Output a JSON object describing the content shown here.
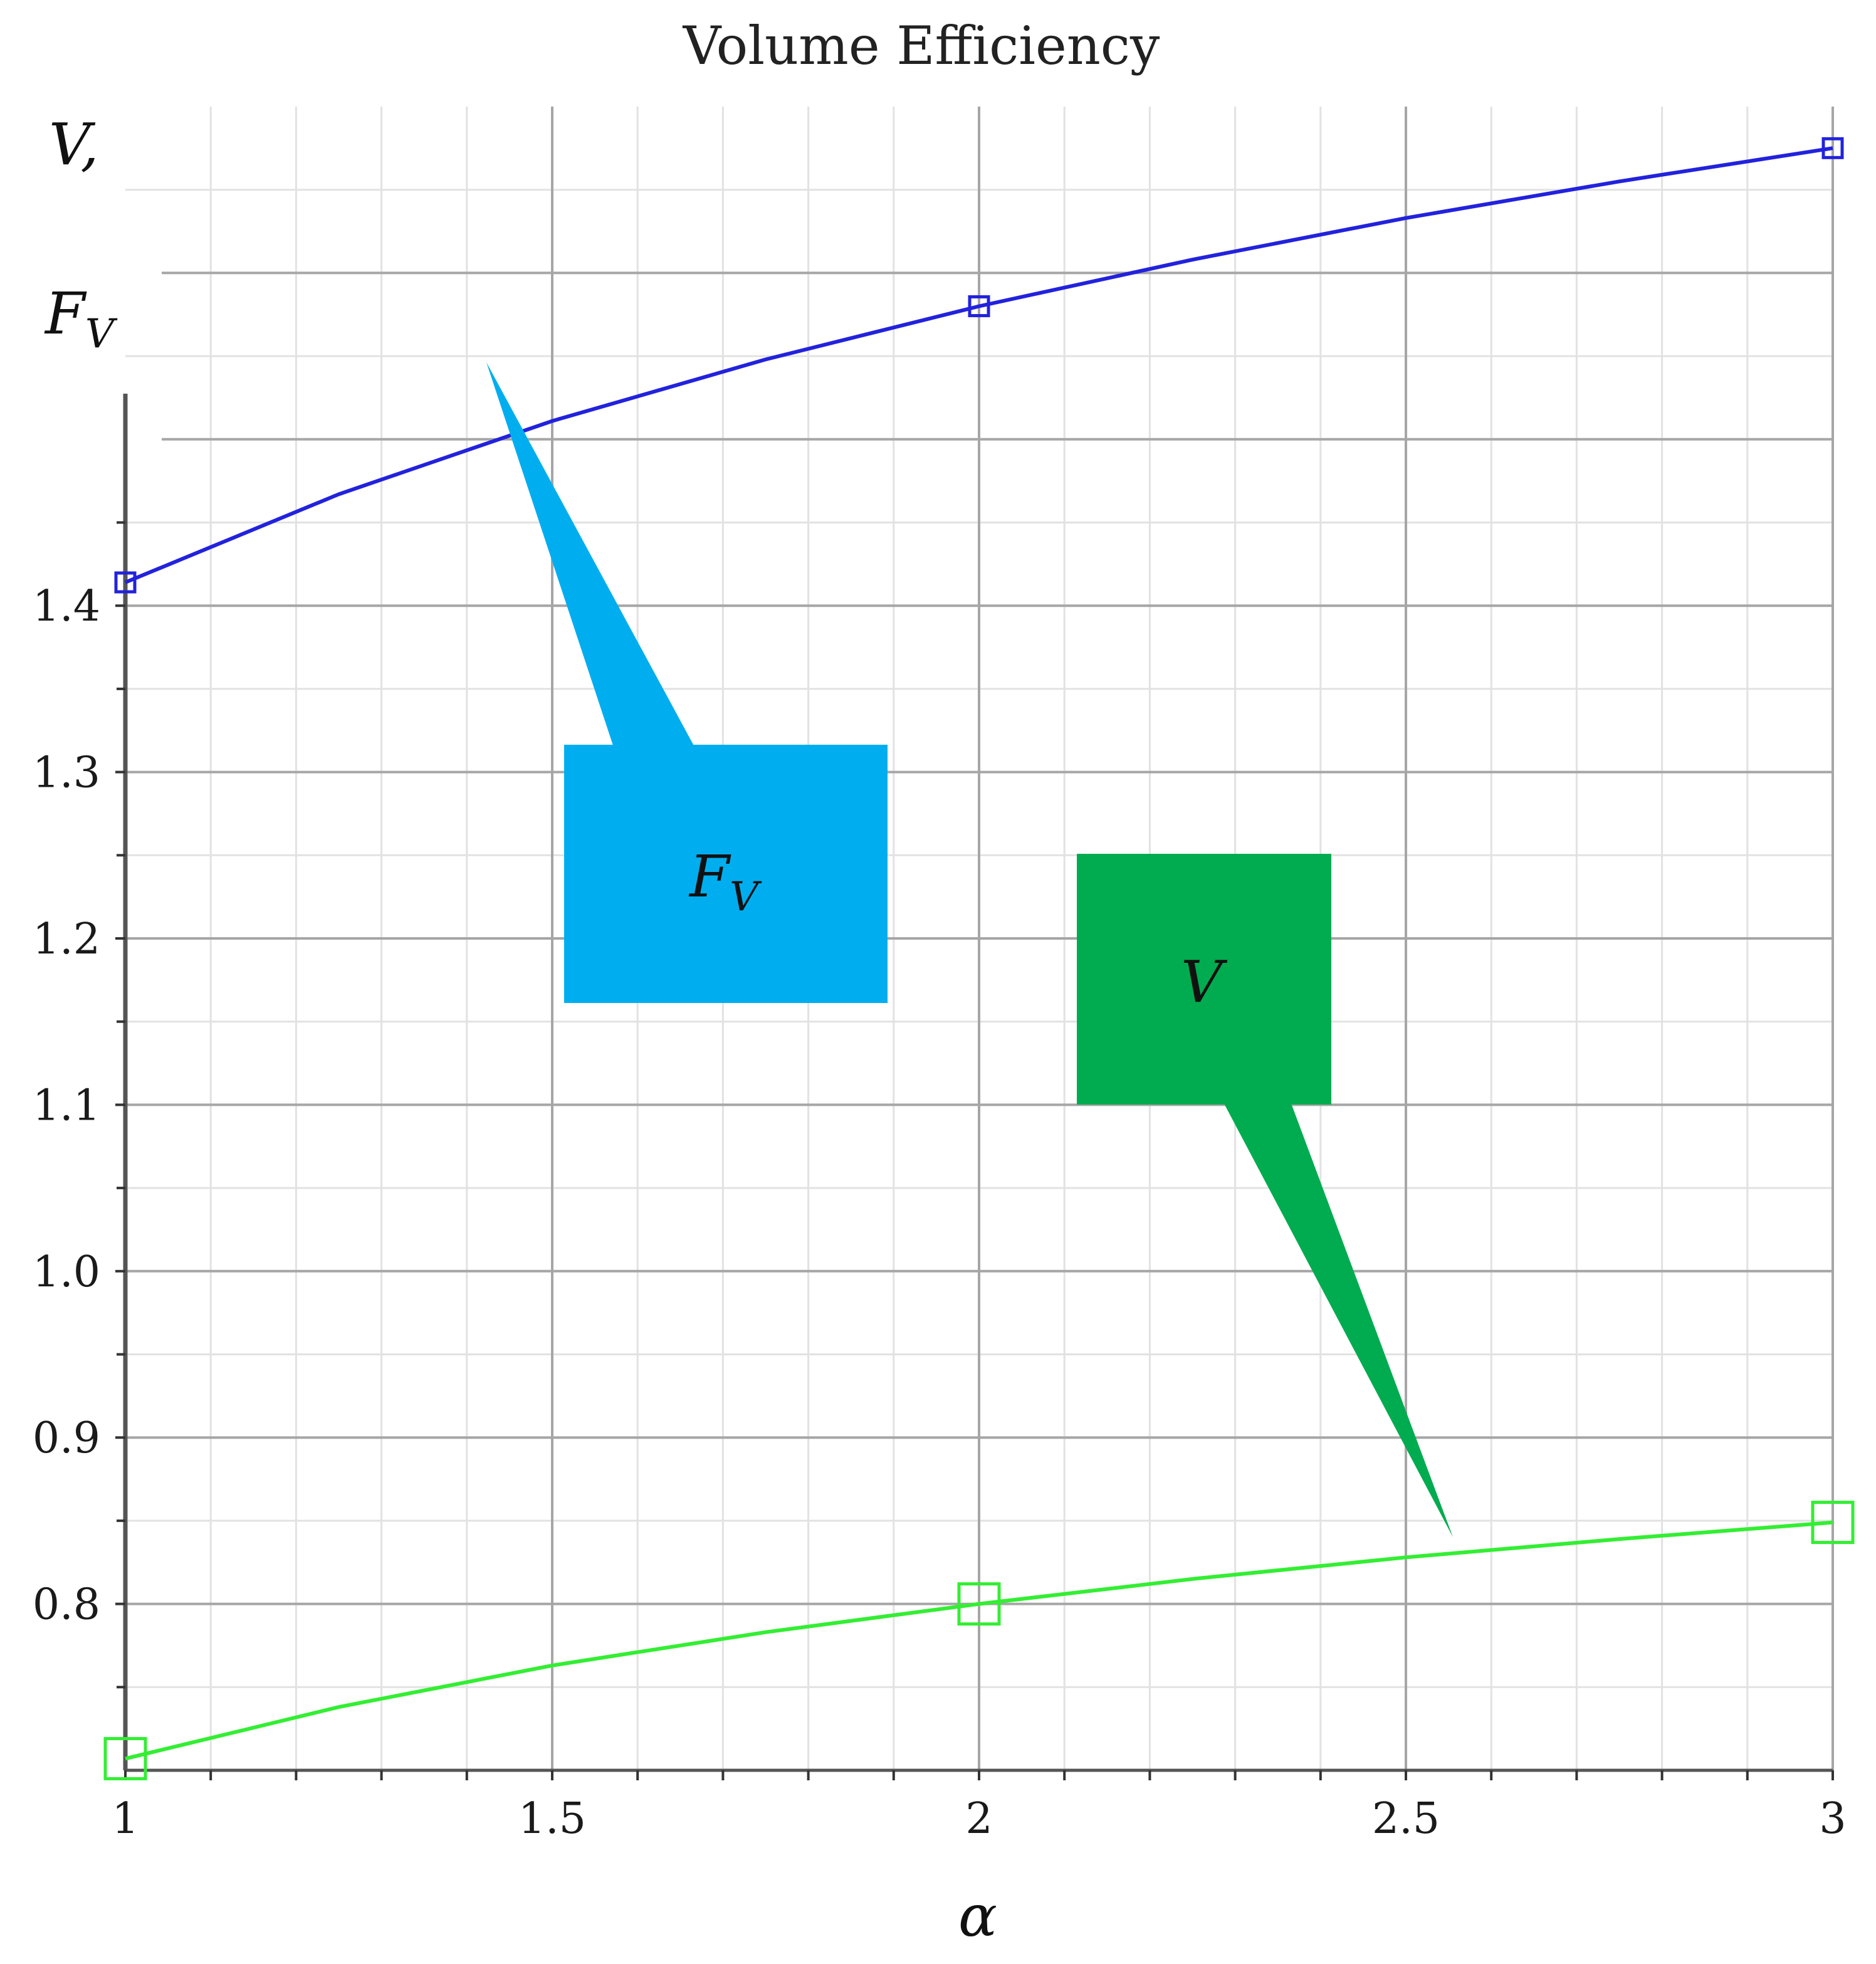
{
  "chart_data": {
    "type": "line",
    "title": "Volume Efficiency",
    "xlabel": "α",
    "ylabel": {
      "line1": "V,",
      "line2_main": "F",
      "line2_sub": "V"
    },
    "xlim": [
      1,
      3
    ],
    "ylim": [
      0.7,
      1.7
    ],
    "x_ticks": [
      1,
      1.5,
      2,
      2.5,
      3
    ],
    "x_tick_labels": [
      "1",
      "1.5",
      "2",
      "2.5",
      "3"
    ],
    "y_ticks": [
      0.8,
      0.9,
      1.0,
      1.1,
      1.2,
      1.3,
      1.4
    ],
    "y_tick_labels": [
      "0.8",
      "0.9",
      "1.0",
      "1.1",
      "1.2",
      "1.3",
      "1.4"
    ],
    "grid": true,
    "series": [
      {
        "name": "F_V",
        "color": "#2222dd",
        "x": [
          1,
          1.25,
          1.5,
          1.75,
          2,
          2.25,
          2.5,
          2.75,
          3
        ],
        "y": [
          1.414,
          1.467,
          1.511,
          1.548,
          1.58,
          1.608,
          1.633,
          1.655,
          1.675
        ],
        "markers_at": [
          1,
          2,
          3
        ]
      },
      {
        "name": "V",
        "color": "#33ee33",
        "x": [
          1,
          1.25,
          1.5,
          1.75,
          2,
          2.25,
          2.5,
          2.75,
          3
        ],
        "y": [
          0.707,
          0.738,
          0.763,
          0.783,
          0.8,
          0.815,
          0.828,
          0.839,
          0.849
        ],
        "markers_at": [
          1,
          2,
          3
        ]
      }
    ],
    "annotations": [
      {
        "main": "F",
        "sub": "V",
        "color": "#00aeef"
      },
      {
        "main": "V",
        "sub": "",
        "color": "#00ac4f"
      }
    ]
  },
  "colors": {
    "grid_major": "#a6a6a6",
    "grid_minor": "#e2e2e2",
    "axis": "#555555"
  }
}
